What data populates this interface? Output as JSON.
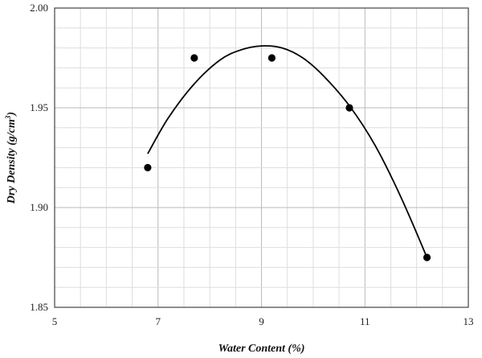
{
  "chart_data": {
    "type": "scatter",
    "title": "",
    "xlabel": "Water Content (%)",
    "ylabel_main": "Dry Density (g/cm",
    "ylabel_sup": "3",
    "ylabel_close": ")",
    "xlim": [
      5,
      13
    ],
    "ylim": [
      1.85,
      2.0
    ],
    "x_ticks": [
      5,
      7,
      9,
      11,
      13
    ],
    "y_ticks": [
      1.85,
      1.9,
      1.95,
      2.0
    ],
    "x_tick_labels": [
      "5",
      "7",
      "9",
      "11",
      "13"
    ],
    "y_tick_labels": [
      "1.85",
      "1.90",
      "1.95",
      "2.00"
    ],
    "x_minor_step": 0.5,
    "y_minor_step": 0.01,
    "grid": true,
    "series": [
      {
        "points": [
          {
            "x": 6.8,
            "y": 1.92
          },
          {
            "x": 7.7,
            "y": 1.975
          },
          {
            "x": 9.2,
            "y": 1.975
          },
          {
            "x": 10.7,
            "y": 1.95
          },
          {
            "x": 12.2,
            "y": 1.875
          }
        ],
        "color": "#000000"
      }
    ],
    "fit_curve": {
      "type": "polynomial",
      "color": "#000000",
      "points": [
        {
          "x": 6.8,
          "y": 1.927
        },
        {
          "x": 7.2,
          "y": 1.945
        },
        {
          "x": 7.7,
          "y": 1.962
        },
        {
          "x": 8.2,
          "y": 1.974
        },
        {
          "x": 8.6,
          "y": 1.979
        },
        {
          "x": 9.0,
          "y": 1.981
        },
        {
          "x": 9.4,
          "y": 1.98
        },
        {
          "x": 9.8,
          "y": 1.975
        },
        {
          "x": 10.2,
          "y": 1.966
        },
        {
          "x": 10.7,
          "y": 1.951
        },
        {
          "x": 11.2,
          "y": 1.931
        },
        {
          "x": 11.7,
          "y": 1.905
        },
        {
          "x": 12.2,
          "y": 1.875
        }
      ]
    }
  }
}
